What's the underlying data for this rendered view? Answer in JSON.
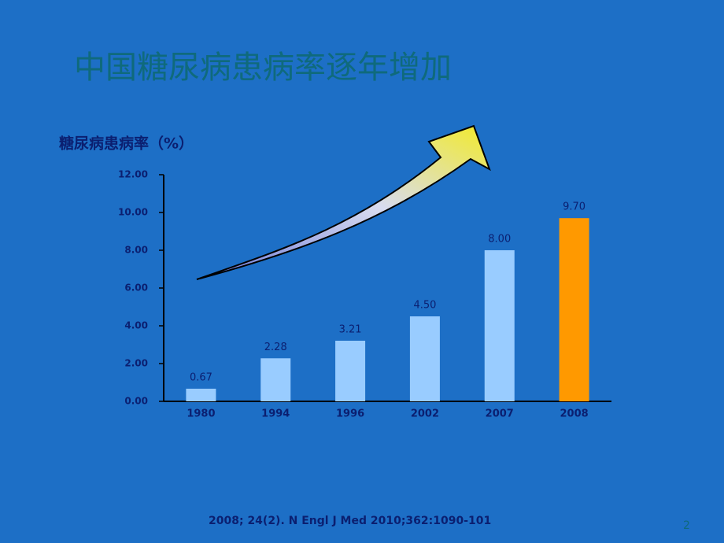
{
  "chart_data": {
    "type": "bar",
    "title": "中国糖尿病患病率逐年增加",
    "y_label": "糖尿病患病率（%）",
    "categories": [
      "1980",
      "1994",
      "1996",
      "2002",
      "2007",
      "2008"
    ],
    "values": [
      0.67,
      2.28,
      3.21,
      4.5,
      8,
      9.7
    ],
    "value_labels": [
      "0.67",
      "2.28",
      "3.21",
      "4.50",
      "8.00",
      "9.70"
    ],
    "colors": [
      "#99ccff",
      "#99ccff",
      "#99ccff",
      "#99ccff",
      "#99ccff",
      "#ff9900"
    ],
    "ylim": [
      0,
      12
    ],
    "yticks": [
      {
        "value": 0,
        "label": "0.00"
      },
      {
        "value": 2,
        "label": "2.00"
      },
      {
        "value": 4,
        "label": "4.00"
      },
      {
        "value": 6,
        "label": "6.00"
      },
      {
        "value": 8,
        "label": "8.00"
      },
      {
        "value": 10,
        "label": "10.00"
      },
      {
        "value": 12,
        "label": "12.00"
      }
    ],
    "footnote": "2008; 24(2). N Engl J Med 2010;362:1090-101",
    "page_number": "2"
  }
}
